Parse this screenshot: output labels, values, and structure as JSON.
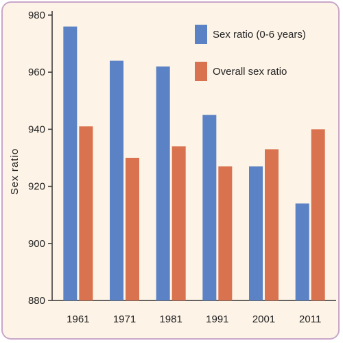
{
  "chart_data": {
    "type": "bar",
    "title": "",
    "xlabel": "",
    "ylabel": "Sex ratio",
    "ylim": [
      880,
      980
    ],
    "yticks": [
      880,
      900,
      920,
      940,
      960,
      980
    ],
    "categories": [
      "1961",
      "1971",
      "1981",
      "1991",
      "2001",
      "2011"
    ],
    "series": [
      {
        "name": "Sex ratio (0-6 years)",
        "color": "#5b82c4",
        "values": [
          976,
          964,
          962,
          945,
          927,
          914
        ]
      },
      {
        "name": "Overall sex ratio",
        "color": "#d9724e",
        "values": [
          941,
          930,
          934,
          927,
          933,
          940
        ]
      }
    ],
    "grid": false,
    "legend_position": "top-right"
  }
}
